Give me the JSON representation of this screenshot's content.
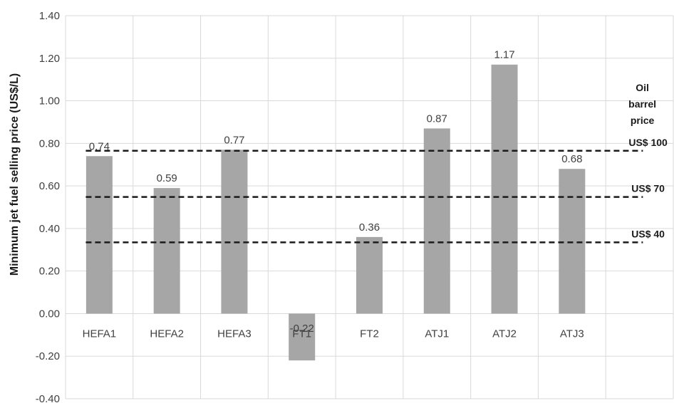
{
  "chart_data": {
    "type": "bar",
    "categories": [
      "HEFA1",
      "HEFA2",
      "HEFA3",
      "FT1",
      "FT2",
      "ATJ1",
      "ATJ2",
      "ATJ3"
    ],
    "values": [
      0.74,
      0.59,
      0.77,
      -0.22,
      0.36,
      0.87,
      1.17,
      0.68
    ],
    "data_labels": [
      "0.74",
      "0.59",
      "0.77",
      "-0.22",
      "0.36",
      "0.87",
      "1.17",
      "0.68"
    ],
    "ylabel": "Minimum jet fuel selling price (US$/L)",
    "xlabel": "",
    "ylim": [
      -0.4,
      1.4
    ],
    "yticks": [
      -0.4,
      -0.2,
      0.0,
      0.2,
      0.4,
      0.6,
      0.8,
      1.0,
      1.2,
      1.4
    ],
    "ytick_labels": [
      "-0.40",
      "-0.20",
      "0.00",
      "0.20",
      "0.40",
      "0.60",
      "0.80",
      "1.00",
      "1.20",
      "1.40"
    ],
    "grid": true,
    "bar_color": "#a6a6a6",
    "grid_color": "#d9d9d9",
    "reference_title_lines": [
      "Oil",
      "barrel",
      "price"
    ],
    "reference_lines": [
      {
        "label": "US$ 100",
        "value": 0.765
      },
      {
        "label": "US$ 70",
        "value": 0.548
      },
      {
        "label": "US$ 40",
        "value": 0.335
      }
    ]
  }
}
